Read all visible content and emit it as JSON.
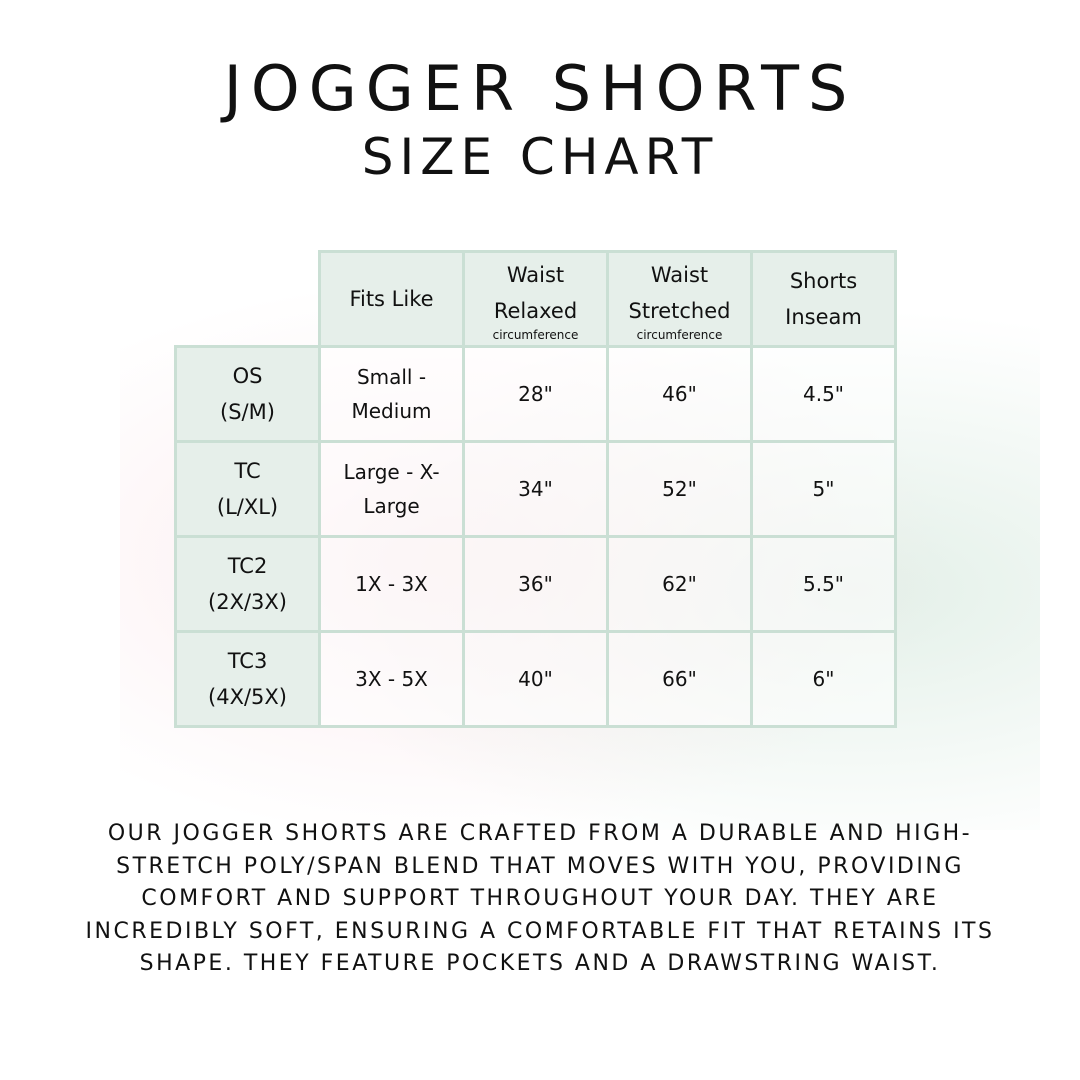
{
  "title": "JOGGER SHORTS",
  "subtitle": "SIZE CHART",
  "table": {
    "headers": [
      {
        "main": "Fits Like",
        "sub": ""
      },
      {
        "main": "Waist Relaxed",
        "sub": "circumference"
      },
      {
        "main": "Waist Stretched",
        "sub": "circumference"
      },
      {
        "main": "Shorts Inseam",
        "sub": ""
      }
    ],
    "rows": [
      {
        "size": "OS",
        "size_alt": "(S/M)",
        "cells": [
          "Small - Medium",
          "28\"",
          "46\"",
          "4.5\""
        ]
      },
      {
        "size": "TC",
        "size_alt": "(L/XL)",
        "cells": [
          "Large - X-Large",
          "34\"",
          "52\"",
          "5\""
        ]
      },
      {
        "size": "TC2",
        "size_alt": "(2X/3X)",
        "cells": [
          "1X - 3X",
          "36\"",
          "62\"",
          "5.5\""
        ]
      },
      {
        "size": "TC3",
        "size_alt": "(4X/5X)",
        "cells": [
          "3X - 5X",
          "40\"",
          "66\"",
          "6\""
        ]
      }
    ]
  },
  "description": "Our jogger shorts are crafted from a durable and high-stretch poly/span blend that moves with you, providing comfort and support throughout your day. They are incredibly soft, ensuring a comfortable fit that retains its shape. They feature pockets and a drawstring waist.",
  "colors": {
    "header_bg": "#e6efea",
    "border": "#cadfd4"
  }
}
